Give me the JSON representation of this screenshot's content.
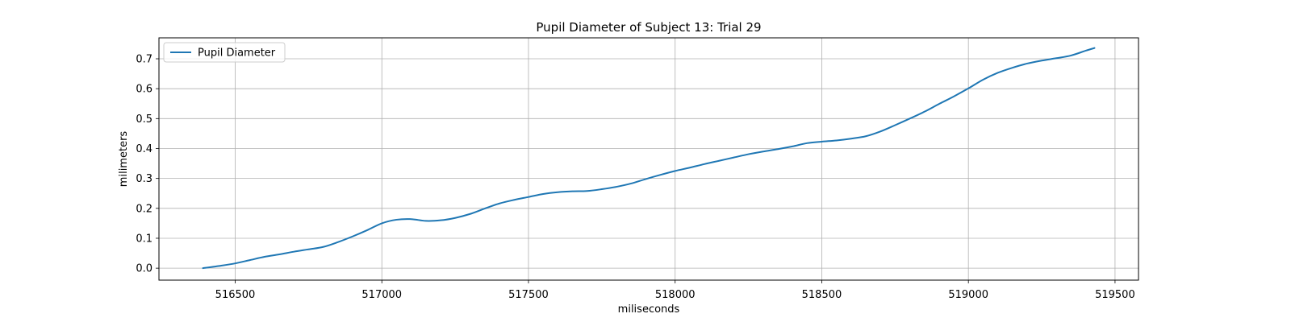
{
  "chart_data": {
    "type": "line",
    "title": "Pupil Diameter of Subject 13: Trial 29",
    "xlabel": "miliseconds",
    "ylabel": "milimeters",
    "xlim": [
      516240,
      519580
    ],
    "ylim": [
      -0.04,
      0.77
    ],
    "xticks": [
      516500,
      517000,
      517500,
      518000,
      518500,
      519000,
      519500
    ],
    "xtick_labels": [
      "516500",
      "517000",
      "517500",
      "518000",
      "518500",
      "519000",
      "519500"
    ],
    "yticks": [
      0.0,
      0.1,
      0.2,
      0.3,
      0.4,
      0.5,
      0.6,
      0.7
    ],
    "ytick_labels": [
      "0.0",
      "0.1",
      "0.2",
      "0.3",
      "0.4",
      "0.5",
      "0.6",
      "0.7"
    ],
    "grid": true,
    "legend_position": "top-left",
    "series": [
      {
        "name": "Pupil Diameter",
        "color": "#1f77b4",
        "x": [
          516390,
          516450,
          516500,
          516550,
          516600,
          516650,
          516700,
          516750,
          516800,
          516850,
          516900,
          516950,
          517000,
          517050,
          517100,
          517150,
          517200,
          517250,
          517300,
          517350,
          517400,
          517450,
          517500,
          517550,
          517600,
          517650,
          517700,
          517750,
          517800,
          517850,
          517900,
          517950,
          518000,
          518050,
          518100,
          518150,
          518200,
          518250,
          518300,
          518350,
          518400,
          518450,
          518500,
          518550,
          518600,
          518650,
          518700,
          518750,
          518800,
          518850,
          518900,
          518950,
          519000,
          519050,
          519100,
          519150,
          519200,
          519250,
          519300,
          519350,
          519400,
          519430
        ],
        "y": [
          0.0,
          0.008,
          0.016,
          0.027,
          0.038,
          0.046,
          0.055,
          0.063,
          0.071,
          0.087,
          0.106,
          0.127,
          0.15,
          0.162,
          0.164,
          0.158,
          0.16,
          0.168,
          0.181,
          0.199,
          0.216,
          0.228,
          0.238,
          0.248,
          0.254,
          0.257,
          0.258,
          0.264,
          0.272,
          0.283,
          0.298,
          0.312,
          0.325,
          0.336,
          0.348,
          0.359,
          0.37,
          0.381,
          0.39,
          0.398,
          0.407,
          0.418,
          0.423,
          0.427,
          0.433,
          0.441,
          0.457,
          0.478,
          0.5,
          0.523,
          0.549,
          0.574,
          0.601,
          0.63,
          0.653,
          0.67,
          0.684,
          0.694,
          0.702,
          0.711,
          0.727,
          0.736
        ]
      }
    ]
  }
}
